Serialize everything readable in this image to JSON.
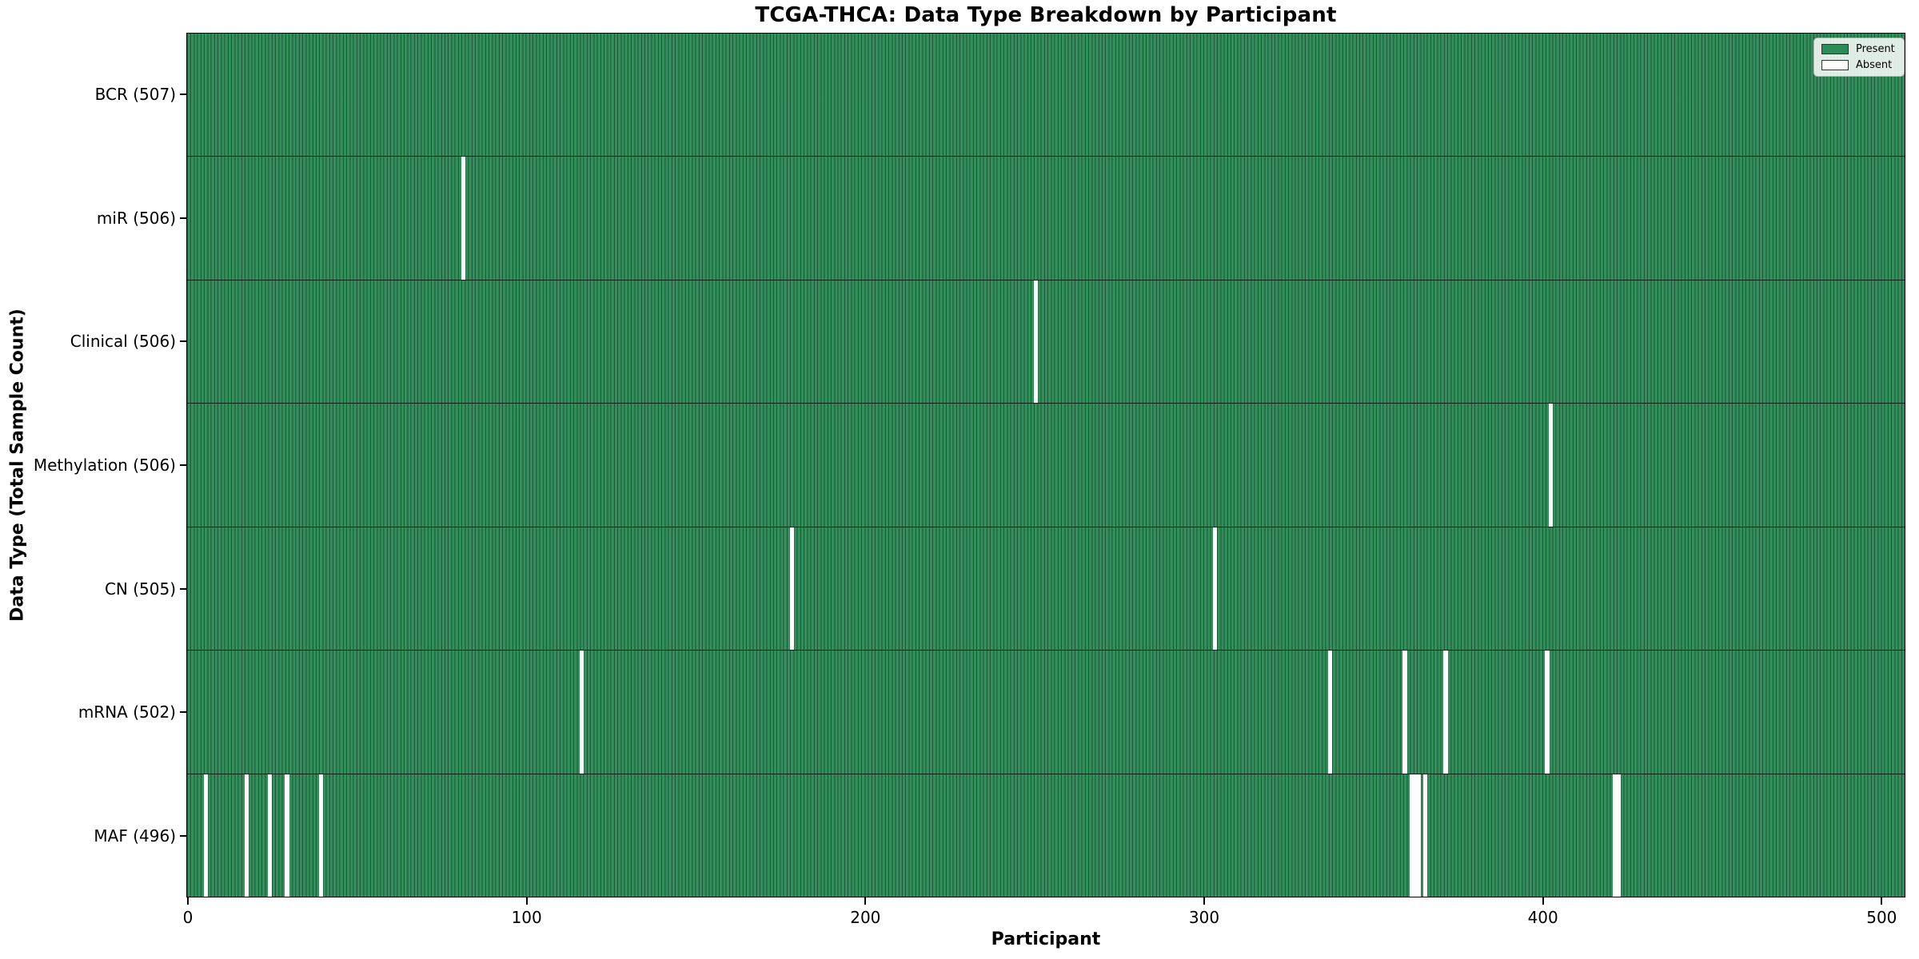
{
  "title": "TCGA-THCA: Data Type Breakdown by Participant",
  "axes": {
    "xlabel": "Participant",
    "ylabel": "Data Type (Total Sample Count)"
  },
  "legend": {
    "present_label": "Present",
    "absent_label": "Absent"
  },
  "colors": {
    "present": "#2e8b57",
    "absent": "#ffffff",
    "bar_edge": "#0a2618"
  },
  "chart_data": {
    "type": "heatmap",
    "title": "TCGA-THCA: Data Type Breakdown by Participant",
    "xlabel": "Participant",
    "ylabel": "Data Type (Total Sample Count)",
    "legend_entries": [
      "Present",
      "Absent"
    ],
    "legend_position": "upper right",
    "grid": false,
    "n_participants": 507,
    "x_ticks": [
      0,
      100,
      200,
      300,
      400,
      500
    ],
    "xlim": [
      -0.5,
      507
    ],
    "rows": [
      {
        "label": "BCR (507)",
        "name": "BCR",
        "total": 507,
        "absent_participants": []
      },
      {
        "label": "miR (506)",
        "name": "miR",
        "total": 506,
        "absent_participants": [
          81
        ]
      },
      {
        "label": "Clinical (506)",
        "name": "Clinical",
        "total": 506,
        "absent_participants": [
          250
        ]
      },
      {
        "label": "Methylation (506)",
        "name": "Methylation",
        "total": 506,
        "absent_participants": [
          402
        ]
      },
      {
        "label": "CN (505)",
        "name": "CN",
        "total": 505,
        "absent_participants": [
          178,
          303
        ]
      },
      {
        "label": "mRNA (502)",
        "name": "mRNA",
        "total": 502,
        "absent_participants": [
          116,
          337,
          359,
          371,
          401
        ]
      },
      {
        "label": "MAF (496)",
        "name": "MAF",
        "total": 496,
        "absent_participants": [
          5,
          17,
          24,
          29,
          39,
          361,
          362,
          363,
          365,
          421,
          422
        ]
      }
    ]
  }
}
